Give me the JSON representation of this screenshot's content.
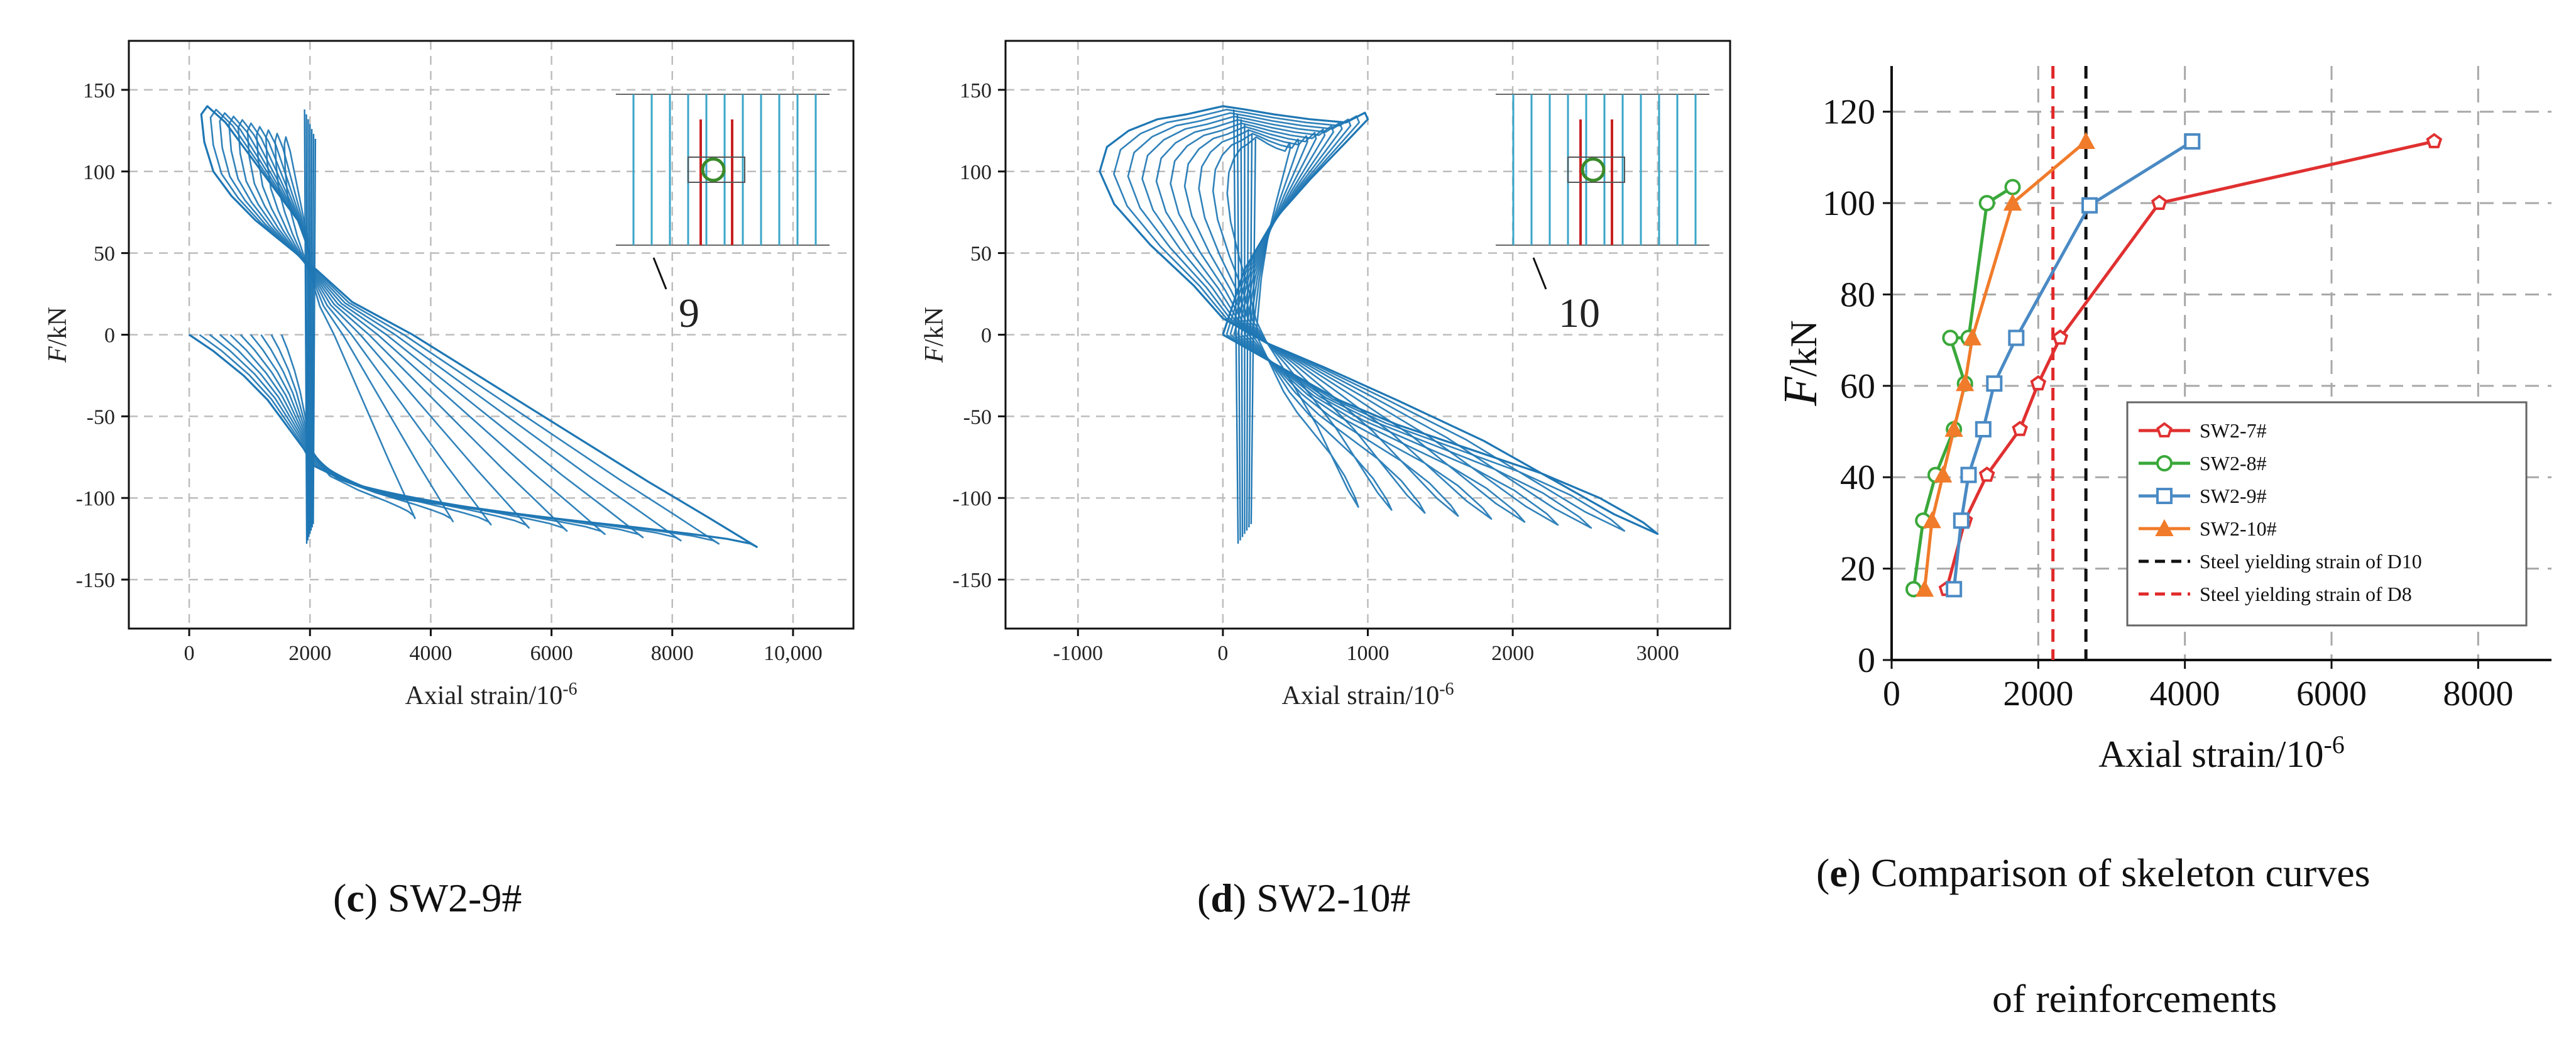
{
  "figure": {
    "captions": [
      {
        "letter": "c",
        "text": " SW2-9#"
      },
      {
        "letter": "d",
        "text": " SW2-10#"
      },
      {
        "letter": "e",
        "text": " Comparison of skeleton curves",
        "line2": "of reinforcements"
      }
    ]
  },
  "chart_data": [
    {
      "type": "line",
      "panel": "c",
      "xlabel": "Axial strain/10",
      "xlabel_sup": "-6",
      "ylabel": "F",
      "ylabel_unit": "/kN",
      "xlim": [
        -1000,
        11000
      ],
      "ylim": [
        -180,
        180
      ],
      "xticks": [
        0,
        2000,
        4000,
        6000,
        8000,
        10000
      ],
      "xtick_labels": [
        "0",
        "2000",
        "4000",
        "6000",
        "8000",
        "10,000"
      ],
      "yticks": [
        150,
        100,
        50,
        0,
        -50,
        -100,
        -150
      ],
      "grid": true,
      "line_color": "#1f77b4",
      "inset_label": "9",
      "description_of_curve": "hysteretic loops",
      "series": [
        {
          "x": [
            0,
            400,
            900,
            1300,
            1600,
            1900,
            2050,
            2600,
            3400,
            4400,
            5400,
            6400,
            7400,
            8300,
            8900,
            9300,
            9400,
            8600,
            7600,
            6300,
            5000,
            3700,
            2700,
            2100,
            1600,
            1100,
            700,
            400,
            250,
            200,
            300,
            600,
            1000,
            1400,
            1800,
            2000
          ],
          "y": [
            0,
            -10,
            -25,
            -40,
            -55,
            -70,
            -80,
            -90,
            -100,
            -105,
            -110,
            -114,
            -118,
            -122,
            -125,
            -128,
            -130,
            -112,
            -90,
            -60,
            -30,
            0,
            20,
            40,
            55,
            70,
            85,
            100,
            118,
            135,
            140,
            130,
            110,
            90,
            70,
            50
          ]
        }
      ]
    },
    {
      "type": "line",
      "panel": "d",
      "xlabel": "Axial strain/10",
      "xlabel_sup": "-6",
      "ylabel": "F",
      "ylabel_unit": "/kN",
      "xlim": [
        -1500,
        3500
      ],
      "ylim": [
        -180,
        180
      ],
      "xticks": [
        -1000,
        0,
        1000,
        2000,
        3000
      ],
      "xtick_labels": [
        "-1000",
        "0",
        "1000",
        "2000",
        "3000"
      ],
      "yticks": [
        150,
        100,
        50,
        0,
        -50,
        -100,
        -150
      ],
      "grid": true,
      "line_color": "#1f77b4",
      "inset_label": "10",
      "series": [
        {
          "x": [
            0,
            200,
            500,
            800,
            1200,
            1700,
            2200,
            2600,
            2900,
            3000,
            2700,
            2300,
            1800,
            1200,
            700,
            300,
            0,
            -200,
            -500,
            -750,
            -850,
            -800,
            -650,
            -450,
            -250,
            -100,
            0,
            150,
            350,
            600,
            850,
            980,
            1000,
            850,
            600,
            350,
            150,
            0
          ],
          "y": [
            0,
            -10,
            -25,
            -40,
            -55,
            -70,
            -85,
            -100,
            -115,
            -122,
            -110,
            -90,
            -65,
            -40,
            -20,
            -5,
            10,
            30,
            55,
            80,
            100,
            115,
            125,
            132,
            135,
            138,
            140,
            138,
            135,
            132,
            130,
            136,
            132,
            118,
            95,
            70,
            40,
            0
          ]
        }
      ]
    },
    {
      "type": "line",
      "panel": "e",
      "xlabel": "Axial strain/10",
      "xlabel_sup": "-6",
      "ylabel": "F",
      "ylabel_unit": "/kN",
      "xlim": [
        0,
        9000
      ],
      "ylim": [
        0,
        130
      ],
      "xticks": [
        0,
        2000,
        4000,
        6000,
        8000
      ],
      "yticks": [
        0,
        20,
        40,
        60,
        80,
        100,
        120
      ],
      "grid": true,
      "legend_position": "inside-right",
      "series": [
        {
          "name": "SW2-7#",
          "color": "#e03030",
          "marker": "pentagon",
          "x": [
            750,
            1000,
            1300,
            1750,
            2000,
            2300,
            3650,
            7400
          ],
          "y": [
            15.5,
            30.5,
            40.5,
            50.5,
            60.5,
            70.5,
            100,
            113.5
          ]
        },
        {
          "name": "SW2-8#",
          "color": "#3aa83a",
          "marker": "circle",
          "x": [
            300,
            430,
            600,
            850,
            1000,
            800,
            1050,
            1300,
            1650
          ],
          "y": [
            15.5,
            30.5,
            40.5,
            50.5,
            60.5,
            70.5,
            70.5,
            100,
            103.5
          ]
        },
        {
          "name": "SW2-9#",
          "color": "#4a8ac4",
          "marker": "square",
          "x": [
            850,
            950,
            1050,
            1250,
            1400,
            1700,
            2700,
            4100
          ],
          "y": [
            15.5,
            30.5,
            40.5,
            50.5,
            60.5,
            70.5,
            99.5,
            113.5
          ]
        },
        {
          "name": "SW2-10#",
          "color": "#f07b2a",
          "marker": "triangle",
          "x": [
            450,
            550,
            700,
            850,
            1000,
            1100,
            1650,
            2650
          ],
          "y": [
            15.5,
            30.5,
            40.5,
            50.5,
            60.5,
            70.5,
            100,
            113.5
          ]
        }
      ],
      "reference_lines": [
        {
          "name": "Steel yielding strain of D10",
          "color": "#111111",
          "x": 2650,
          "style": "dashed"
        },
        {
          "name": "Steel yielding strain of D8",
          "color": "#e02828",
          "x": 2200,
          "style": "dashed"
        }
      ]
    }
  ]
}
